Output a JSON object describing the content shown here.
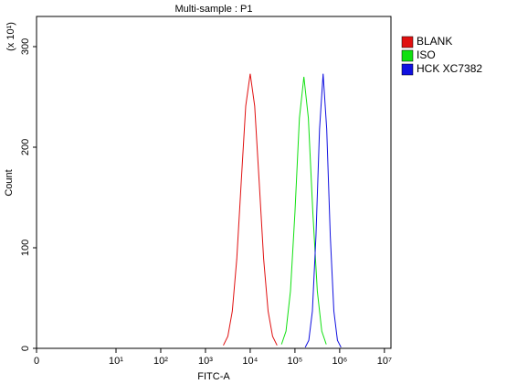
{
  "chart_data": {
    "type": "line",
    "title": "Multi-sample : P1",
    "x_label": "FITC-A",
    "y_label": "Count",
    "y_multiplier": "(x 10¹)",
    "x_scale": "log",
    "xlim": [
      0,
      14000000
    ],
    "ylim": [
      0,
      330
    ],
    "xticks": [
      0,
      {
        "value": 10,
        "label": "10¹"
      },
      {
        "value": 100,
        "label": "10²"
      },
      {
        "value": 1000,
        "label": "10³"
      },
      {
        "value": 10000,
        "label": "10⁴"
      },
      {
        "value": 100000,
        "label": "10⁵"
      },
      {
        "value": 1000000,
        "label": "10⁶"
      },
      {
        "value": 10000000,
        "label": "10⁷"
      }
    ],
    "yticks": [
      0,
      100,
      200,
      300
    ],
    "grid": false,
    "legend_position": "right",
    "series": [
      {
        "name": "BLANK",
        "color": "#e01010",
        "x": [
          2512,
          3162,
          3981,
          5012,
          6310,
          7943,
          10000,
          12589,
          15849,
          19953,
          25119,
          31623,
          39811
        ],
        "values": [
          3,
          12,
          37,
          89,
          166,
          241,
          273,
          241,
          166,
          89,
          37,
          12,
          3
        ]
      },
      {
        "name": "ISO",
        "color": "#10e010",
        "x": [
          50119,
          63096,
          79433,
          100000,
          125893,
          158489,
          199526,
          251189,
          316228,
          398107,
          501187
        ],
        "values": [
          4,
          17,
          57,
          135,
          229,
          270,
          229,
          135,
          57,
          17,
          4
        ]
      },
      {
        "name": "HCK XC7382",
        "color": "#1010e0",
        "x": [
          169824,
          204174,
          245471,
          295121,
          354813,
          426580,
          512861,
          616595,
          741310,
          891251,
          1071519
        ],
        "values": [
          1,
          8,
          37,
          112,
          218,
          273,
          218,
          112,
          37,
          8,
          1
        ]
      }
    ]
  }
}
